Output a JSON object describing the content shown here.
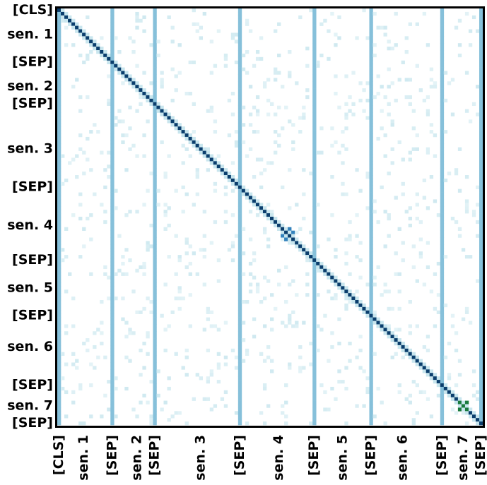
{
  "chart_data": {
    "type": "heatmap",
    "title": "",
    "xlabel": "",
    "ylabel": "",
    "n_tokens": 120,
    "tokens": [
      {
        "label": "[CLS]",
        "index": 0
      },
      {
        "label": "sen. 1",
        "index": 7
      },
      {
        "label": "[SEP]",
        "index": 15
      },
      {
        "label": "sen. 2",
        "index": 22
      },
      {
        "label": "[SEP]",
        "index": 27
      },
      {
        "label": "sen. 3",
        "index": 40
      },
      {
        "label": "[SEP]",
        "index": 51
      },
      {
        "label": "sen. 4",
        "index": 62
      },
      {
        "label": "[SEP]",
        "index": 72
      },
      {
        "label": "sen. 5",
        "index": 80
      },
      {
        "label": "[SEP]",
        "index": 88
      },
      {
        "label": "sen. 6",
        "index": 97
      },
      {
        "label": "[SEP]",
        "index": 108
      },
      {
        "label": "sen. 7",
        "index": 114
      },
      {
        "label": "[SEP]",
        "index": 119
      }
    ],
    "sep_columns": [
      0,
      15,
      27,
      51,
      72,
      88,
      108,
      119
    ],
    "sep_column_value": 0.35,
    "diagonal_value": 0.85,
    "highlight_blocks": [
      {
        "from": 63,
        "to": 66,
        "value": 0.55
      },
      {
        "from": 113,
        "to": 115,
        "value": 1.0
      }
    ],
    "colormap": [
      "#f7fcfd",
      "#d5ecf2",
      "#a6d3e3",
      "#5fa9cf",
      "#2b7bb9",
      "#08519c",
      "#0b3d6b",
      "#1a7a3e"
    ],
    "grid": false,
    "legend": "none"
  }
}
